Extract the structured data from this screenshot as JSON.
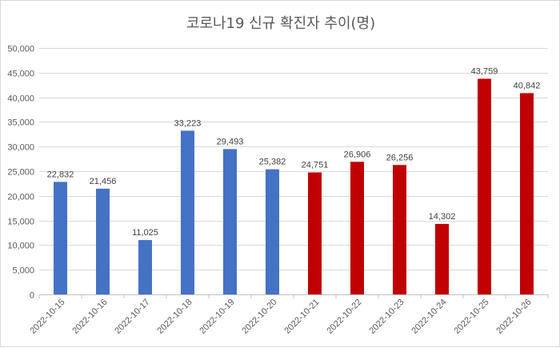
{
  "chart_data": {
    "type": "bar",
    "title": "코로나19 신규 확진자 추이(명)",
    "xlabel": "",
    "ylabel": "",
    "categories": [
      "2022-10-15",
      "2022-10-16",
      "2022-10-17",
      "2022-10-18",
      "2022-10-19",
      "2022-10-20",
      "2022-10-21",
      "2022-10-22",
      "2022-10-23",
      "2022-10-24",
      "2022-10-25",
      "2022-10-26"
    ],
    "values": [
      22832,
      21456,
      11025,
      33223,
      29493,
      25382,
      24751,
      26906,
      26256,
      14302,
      43759,
      40842
    ],
    "data_labels": [
      "22,832",
      "21,456",
      "11,025",
      "33,223",
      "29,493",
      "25,382",
      "24,751",
      "26,906",
      "26,256",
      "14,302",
      "43,759",
      "40,842"
    ],
    "bar_colors": [
      "#4472c4",
      "#4472c4",
      "#4472c4",
      "#4472c4",
      "#4472c4",
      "#4472c4",
      "#c00000",
      "#c00000",
      "#c00000",
      "#c00000",
      "#c00000",
      "#c00000"
    ],
    "ylim": [
      0,
      50000
    ],
    "yticks": [
      "0",
      "5,000",
      "10,000",
      "15,000",
      "20,000",
      "25,000",
      "30,000",
      "35,000",
      "40,000",
      "45,000",
      "50,000"
    ],
    "grid": true,
    "legend": "none"
  }
}
